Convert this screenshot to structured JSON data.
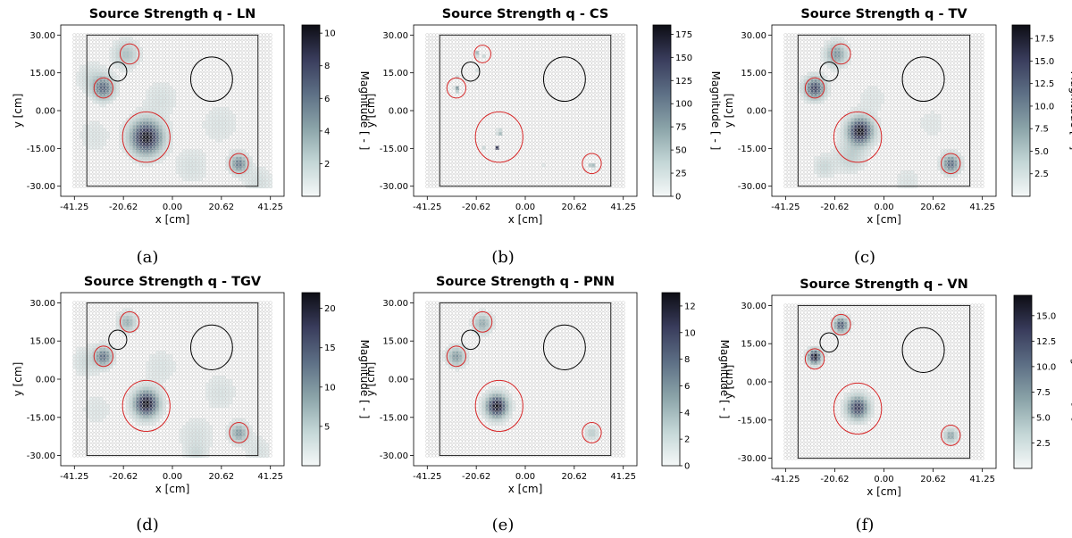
{
  "figure": {
    "x_ticks": [
      "-41.25",
      "-20.62",
      "0.00",
      "20.62",
      "41.25"
    ],
    "x_tick_values": [
      -41.25,
      -20.62,
      0,
      20.62,
      41.25
    ],
    "y_ticks": [
      "30.00",
      "15.00",
      "0.00",
      "-15.00",
      "-30.00"
    ],
    "y_tick_values": [
      30,
      15,
      0,
      -15,
      -30
    ],
    "x_range": [
      -47,
      47
    ],
    "y_range": [
      -34,
      34
    ],
    "xlabel": "x [cm]",
    "ylabel": "y [cm]",
    "colorbar_label": "Magnitude [ - ]",
    "grid_extent": {
      "x": [
        -41.25,
        41.25
      ],
      "y": [
        -30,
        30
      ]
    },
    "array_frame": {
      "x": [
        -36,
        36
      ],
      "y": [
        -30,
        30
      ]
    },
    "black_circle_small": {
      "x": -23,
      "y": 15.5,
      "r": 3.8
    },
    "black_circle_large": {
      "x": 16.5,
      "y": 12.5,
      "r": 8.8
    },
    "colormap": [
      "#f5f8f8",
      "#c3d6d6",
      "#8aa3a8",
      "#5d6f85",
      "#393c5c",
      "#0d0d14"
    ]
  },
  "chart_data": [
    {
      "type": "heatmap",
      "panel": "(a)",
      "title": "Source Strength q - LN",
      "colorbar": {
        "ticks": [
          "2",
          "4",
          "6",
          "8",
          "10"
        ],
        "values": [
          2,
          4,
          6,
          8,
          10
        ],
        "range": [
          0,
          10.5
        ]
      },
      "true_sources": [
        {
          "x": -18,
          "y": 22.5,
          "r": 4
        },
        {
          "x": -29,
          "y": 9,
          "r": 4
        },
        {
          "x": -11,
          "y": -10.5,
          "r": 10
        },
        {
          "x": 28,
          "y": -21,
          "r": 4
        }
      ],
      "sources": [
        {
          "x": -11,
          "y": -10.5,
          "value": 10.5,
          "spread": 4.5
        },
        {
          "x": -29,
          "y": 9,
          "value": 6.5,
          "spread": 3
        },
        {
          "x": 28,
          "y": -21,
          "value": 6,
          "spread": 2.5
        },
        {
          "x": -19.5,
          "y": 22.5,
          "value": 3,
          "spread": 3.5
        },
        {
          "x": -34,
          "y": 13,
          "value": 1.5,
          "spread": 4
        },
        {
          "x": -5,
          "y": 5,
          "value": 1,
          "spread": 5
        },
        {
          "x": 20,
          "y": -5,
          "value": 0.8,
          "spread": 6
        },
        {
          "x": 8,
          "y": -22,
          "value": 1,
          "spread": 5
        },
        {
          "x": -33,
          "y": -10,
          "value": 0.8,
          "spread": 5
        },
        {
          "x": 36,
          "y": -28,
          "value": 1.2,
          "spread": 4
        }
      ]
    },
    {
      "type": "heatmap",
      "panel": "(b)",
      "title": "Source Strength q - CS",
      "colorbar": {
        "ticks": [
          "0",
          "25",
          "50",
          "75",
          "100",
          "125",
          "150",
          "175"
        ],
        "values": [
          0,
          25,
          50,
          75,
          100,
          125,
          150,
          175
        ],
        "range": [
          0,
          185
        ]
      },
      "true_sources": [
        {
          "x": -18,
          "y": 22.5,
          "r": 3.5
        },
        {
          "x": -29,
          "y": 9,
          "r": 4
        },
        {
          "x": -11,
          "y": -10.5,
          "r": 10
        },
        {
          "x": 28,
          "y": -21,
          "r": 4
        }
      ],
      "sources": [
        {
          "x": -29,
          "y": 8.5,
          "value": 185,
          "spread": 0.5
        },
        {
          "x": -11,
          "y": -8.5,
          "value": 175,
          "spread": 0.5
        },
        {
          "x": -12,
          "y": -14.5,
          "value": 160,
          "spread": 0.5
        },
        {
          "x": 28,
          "y": -22,
          "value": 170,
          "spread": 0.5
        },
        {
          "x": -20,
          "y": 22.5,
          "value": 110,
          "spread": 0.5
        },
        {
          "x": -17,
          "y": 22,
          "value": 50,
          "spread": 0.5
        },
        {
          "x": -29,
          "y": 13,
          "value": 35,
          "spread": 0.5
        },
        {
          "x": -17,
          "y": -14.5,
          "value": 40,
          "spread": 0.5
        },
        {
          "x": -20,
          "y": 16,
          "value": 20,
          "spread": 0.5
        },
        {
          "x": 0,
          "y": -8,
          "value": 15,
          "spread": 0.5
        },
        {
          "x": 8,
          "y": -22,
          "value": 15,
          "spread": 0.5
        },
        {
          "x": -26,
          "y": -22,
          "value": 10,
          "spread": 0.5
        }
      ]
    },
    {
      "type": "heatmap",
      "panel": "(c)",
      "title": "Source Strength q - TV",
      "colorbar": {
        "ticks": [
          "2.5",
          "5.0",
          "7.5",
          "10.0",
          "12.5",
          "15.0",
          "17.5"
        ],
        "values": [
          2.5,
          5,
          7.5,
          10,
          12.5,
          15,
          17.5
        ],
        "range": [
          0,
          19
        ]
      },
      "true_sources": [
        {
          "x": -18,
          "y": 22.5,
          "r": 4
        },
        {
          "x": -29,
          "y": 9,
          "r": 4
        },
        {
          "x": -11,
          "y": -10.5,
          "r": 10
        },
        {
          "x": 28,
          "y": -21,
          "r": 4
        }
      ],
      "sources": [
        {
          "x": -10,
          "y": -8,
          "value": 19,
          "spread": 3.5
        },
        {
          "x": -29,
          "y": 9,
          "value": 15,
          "spread": 2.8
        },
        {
          "x": 28,
          "y": -21,
          "value": 12,
          "spread": 2.5
        },
        {
          "x": -20,
          "y": 22.5,
          "value": 9,
          "spread": 3
        },
        {
          "x": -14,
          "y": -18,
          "value": 4,
          "spread": 4
        },
        {
          "x": -25,
          "y": -22,
          "value": 3,
          "spread": 3
        },
        {
          "x": 10,
          "y": -28,
          "value": 1.5,
          "spread": 4
        },
        {
          "x": -5,
          "y": 5,
          "value": 1.2,
          "spread": 5
        },
        {
          "x": 20,
          "y": -5,
          "value": 1,
          "spread": 6
        }
      ]
    },
    {
      "type": "heatmap",
      "panel": "(d)",
      "title": "Source Strength q - TGV",
      "colorbar": {
        "ticks": [
          "5",
          "10",
          "15",
          "20"
        ],
        "values": [
          5,
          10,
          15,
          20
        ],
        "range": [
          0,
          22
        ]
      },
      "true_sources": [
        {
          "x": -18,
          "y": 22.5,
          "r": 4
        },
        {
          "x": -29,
          "y": 9,
          "r": 4
        },
        {
          "x": -11,
          "y": -10.5,
          "r": 10
        },
        {
          "x": 28,
          "y": -21,
          "r": 4
        }
      ],
      "sources": [
        {
          "x": -11,
          "y": -9.5,
          "value": 22,
          "spread": 3.5
        },
        {
          "x": -29,
          "y": 9,
          "value": 13,
          "spread": 2.5
        },
        {
          "x": 28,
          "y": -21,
          "value": 10,
          "spread": 2.5
        },
        {
          "x": -19,
          "y": 22.5,
          "value": 8,
          "spread": 2.5
        },
        {
          "x": -36,
          "y": 7,
          "value": 3,
          "spread": 4
        },
        {
          "x": -5,
          "y": 5,
          "value": 1.8,
          "spread": 5
        },
        {
          "x": 20,
          "y": -5,
          "value": 2,
          "spread": 5
        },
        {
          "x": 10,
          "y": -22,
          "value": 2.2,
          "spread": 5
        },
        {
          "x": -32,
          "y": -12,
          "value": 1.5,
          "spread": 5
        },
        {
          "x": 10,
          "y": -30,
          "value": 3,
          "spread": 3
        },
        {
          "x": 36,
          "y": -28,
          "value": 2,
          "spread": 4
        }
      ]
    },
    {
      "type": "heatmap",
      "panel": "(e)",
      "title": "Source Strength q - PNN",
      "colorbar": {
        "ticks": [
          "0",
          "2",
          "4",
          "6",
          "8",
          "10",
          "12"
        ],
        "values": [
          0,
          2,
          4,
          6,
          8,
          10,
          12
        ],
        "range": [
          0,
          13
        ]
      },
      "true_sources": [
        {
          "x": -18,
          "y": 22.5,
          "r": 4
        },
        {
          "x": -29,
          "y": 9,
          "r": 4
        },
        {
          "x": -11,
          "y": -10.5,
          "r": 10
        },
        {
          "x": 28,
          "y": -21,
          "r": 4
        }
      ],
      "sources": [
        {
          "x": -12,
          "y": -10.5,
          "value": 13,
          "spread": 3
        },
        {
          "x": -29,
          "y": 9,
          "value": 6,
          "spread": 2.5
        },
        {
          "x": -18,
          "y": 22,
          "value": 5,
          "spread": 2.5
        },
        {
          "x": 28,
          "y": -21,
          "value": 3,
          "spread": 1.8
        }
      ]
    },
    {
      "type": "heatmap",
      "panel": "(f)",
      "title": "Source Strength q - VN",
      "colorbar": {
        "ticks": [
          "2.5",
          "5.0",
          "7.5",
          "10.0",
          "12.5",
          "15.0"
        ],
        "values": [
          2.5,
          5,
          7.5,
          10,
          12.5,
          15
        ],
        "range": [
          0,
          17
        ]
      },
      "true_sources": [
        {
          "x": -18,
          "y": 22.5,
          "r": 4
        },
        {
          "x": -29,
          "y": 9,
          "r": 4
        },
        {
          "x": -11,
          "y": -10.5,
          "r": 10
        },
        {
          "x": 28,
          "y": -21,
          "r": 4
        }
      ],
      "sources": [
        {
          "x": -29,
          "y": 10,
          "value": 17,
          "spread": 1.8
        },
        {
          "x": -11,
          "y": -10,
          "value": 14,
          "spread": 3
        },
        {
          "x": -18,
          "y": 22.5,
          "value": 12,
          "spread": 2
        },
        {
          "x": 28,
          "y": -21,
          "value": 7,
          "spread": 1.8
        }
      ]
    }
  ]
}
